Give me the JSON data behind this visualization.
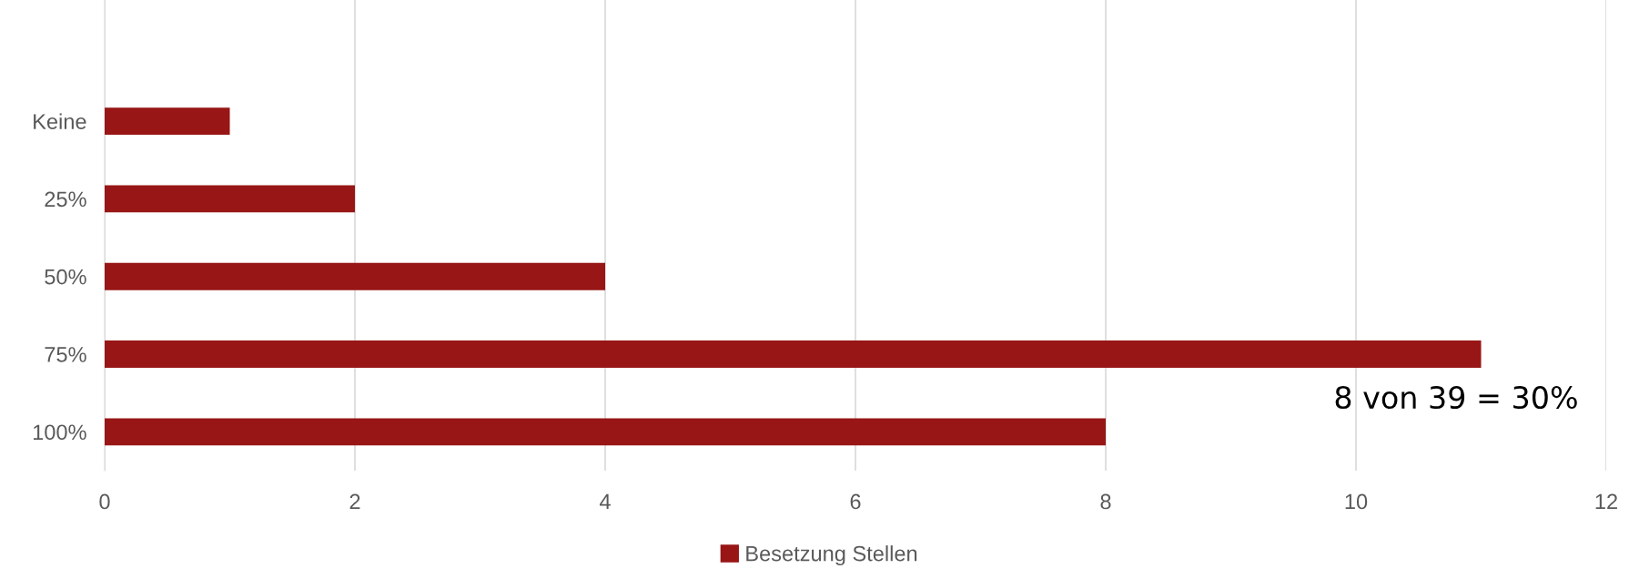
{
  "chart_data": {
    "type": "bar",
    "orientation": "horizontal",
    "categories": [
      "Keine",
      "25%",
      "50%",
      "75%",
      "100%"
    ],
    "series": [
      {
        "name": "Besetzung Stellen",
        "color": "#981616",
        "values": [
          1,
          2,
          4,
          11,
          8
        ]
      }
    ],
    "xlim": [
      0,
      12
    ],
    "xticks": [
      0,
      2,
      4,
      6,
      8,
      10,
      12
    ],
    "grid": "x",
    "legend": "bottom",
    "annotations": [
      "8 von 39 = 30%"
    ]
  }
}
